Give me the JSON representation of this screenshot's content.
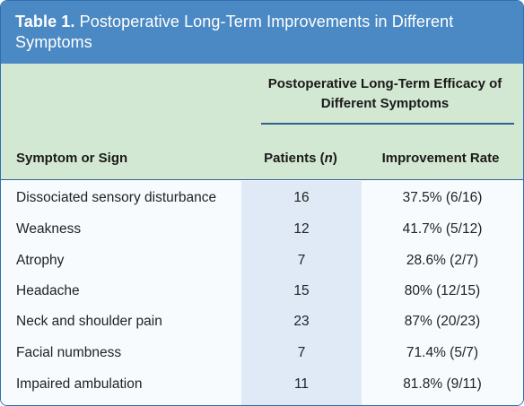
{
  "table": {
    "label": "Table 1.",
    "title": "Postoperative Long-Term Improvements in Different Symptoms",
    "group_header": "Postoperative Long-Term Efficacy of Different Symptoms",
    "columns": {
      "symptom": "Symptom or Sign",
      "patients_prefix": "Patients (",
      "patients_n": "n",
      "patients_suffix": ")",
      "rate": "Improvement Rate"
    },
    "rows": [
      {
        "symptom": "Dissociated sensory disturbance",
        "patients": "16",
        "rate": "37.5% (6/16)"
      },
      {
        "symptom": "Weakness",
        "patients": "12",
        "rate": "41.7% (5/12)"
      },
      {
        "symptom": "Atrophy",
        "patients": "7",
        "rate": "28.6% (2/7)"
      },
      {
        "symptom": "Headache",
        "patients": "15",
        "rate": "80% (12/15)"
      },
      {
        "symptom": "Neck and shoulder pain",
        "patients": "23",
        "rate": "87% (20/23)"
      },
      {
        "symptom": "Facial numbness",
        "patients": "7",
        "rate": "71.4% (5/7)"
      },
      {
        "symptom": "Impaired ambulation",
        "patients": "11",
        "rate": "81.8% (9/11)"
      }
    ]
  },
  "colors": {
    "title_bar": "#4b89c4",
    "header_bg": "#d3e8d2",
    "patients_column_bg": "#dfeaf6",
    "rule": "#2f5f8f"
  }
}
